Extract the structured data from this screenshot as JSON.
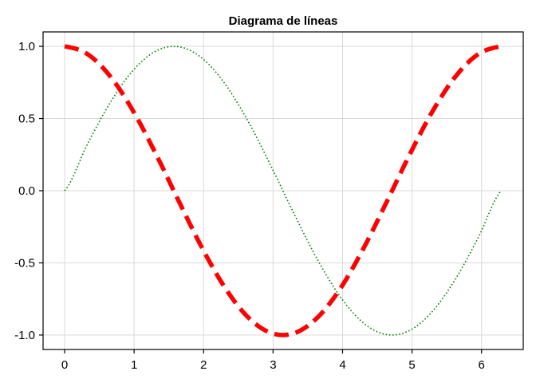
{
  "chart_data": {
    "type": "line",
    "title": "Diagrama de líneas",
    "xlabel": "",
    "ylabel": "",
    "xlim": [
      -0.31,
      6.6
    ],
    "ylim": [
      -1.1,
      1.1
    ],
    "xticks": [
      0,
      1,
      2,
      3,
      4,
      5,
      6
    ],
    "xtick_labels": [
      "0",
      "1",
      "2",
      "3",
      "4",
      "5",
      "6"
    ],
    "yticks": [
      1.0,
      0.5,
      0.0,
      -0.5,
      -1.0
    ],
    "ytick_labels": [
      "1.0",
      "0.5",
      "0.0",
      "-0.5",
      "-1.0"
    ],
    "grid": true,
    "legend": "none",
    "x": [
      0,
      0.3307,
      0.6614,
      0.9921,
      1.3228,
      1.6535,
      1.9842,
      2.3149,
      2.6456,
      2.9762,
      3.3069,
      3.6376,
      3.9683,
      4.299,
      4.6297,
      4.9604,
      5.2911,
      5.6218,
      5.9525,
      6.2832
    ],
    "series": [
      {
        "color": "#008000",
        "style": "dotted",
        "values": [
          0.0,
          0.3247,
          0.6142,
          0.8372,
          0.9694,
          0.9966,
          0.9158,
          0.7357,
          0.4759,
          0.1646,
          -0.1646,
          -0.4759,
          -0.7357,
          -0.9158,
          -0.9966,
          -0.9694,
          -0.8372,
          -0.6142,
          -0.3247,
          0.0
        ]
      },
      {
        "color": "#ff0000",
        "style": "dashed",
        "values": [
          1.0,
          0.9458,
          0.7891,
          0.5469,
          0.2455,
          -0.0826,
          -0.4017,
          -0.6773,
          -0.8795,
          -0.9864,
          -0.9864,
          -0.8795,
          -0.6773,
          -0.4017,
          -0.0826,
          0.2455,
          0.5469,
          0.7891,
          0.9458,
          1.0
        ]
      }
    ]
  }
}
